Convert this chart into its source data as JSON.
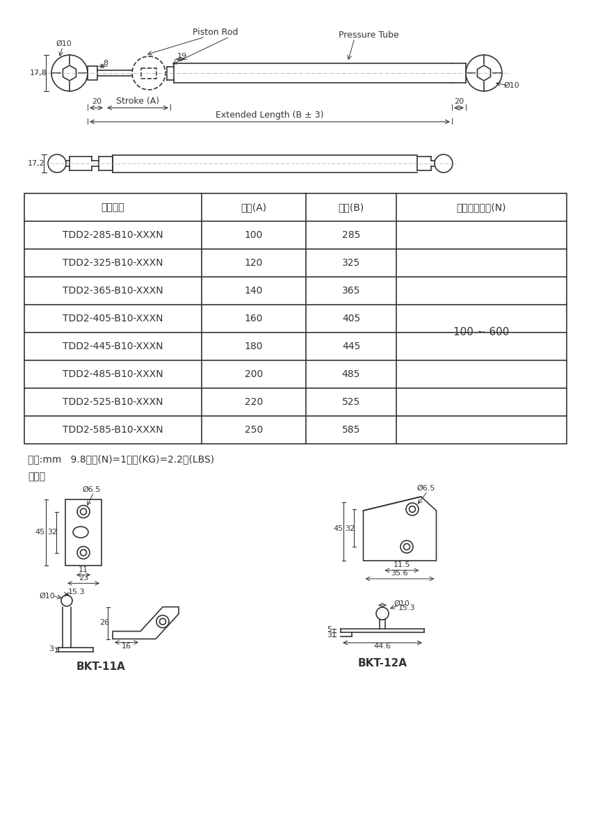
{
  "table_headers": [
    "產品型號",
    "行程(A)",
    "總長(B)",
    "壓力承製範圍(N)"
  ],
  "table_rows": [
    [
      "TDD2-285-B10-XXXN",
      "100",
      "285",
      ""
    ],
    [
      "TDD2-325-B10-XXXN",
      "120",
      "325",
      ""
    ],
    [
      "TDD2-365-B10-XXXN",
      "140",
      "365",
      ""
    ],
    [
      "TDD2-405-B10-XXXN",
      "160",
      "405",
      ""
    ],
    [
      "TDD2-445-B10-XXXN",
      "180",
      "445",
      ""
    ],
    [
      "TDD2-485-B10-XXXN",
      "200",
      "485",
      ""
    ],
    [
      "TDD2-525-B10-XXXN",
      "220",
      "525",
      ""
    ],
    [
      "TDD2-585-B10-XXXN",
      "250",
      "585",
      ""
    ]
  ],
  "pressure_range": "100 ~ 600",
  "unit_note": "單位:mm   9.8牛颏(N)=1公斤(KG)=2.2磅(LBS)",
  "optional_parts": "選配件",
  "bkt11a_label": "BKT-11A",
  "bkt12a_label": "BKT-12A",
  "line_color": "#333333",
  "bg_color": "#ffffff"
}
